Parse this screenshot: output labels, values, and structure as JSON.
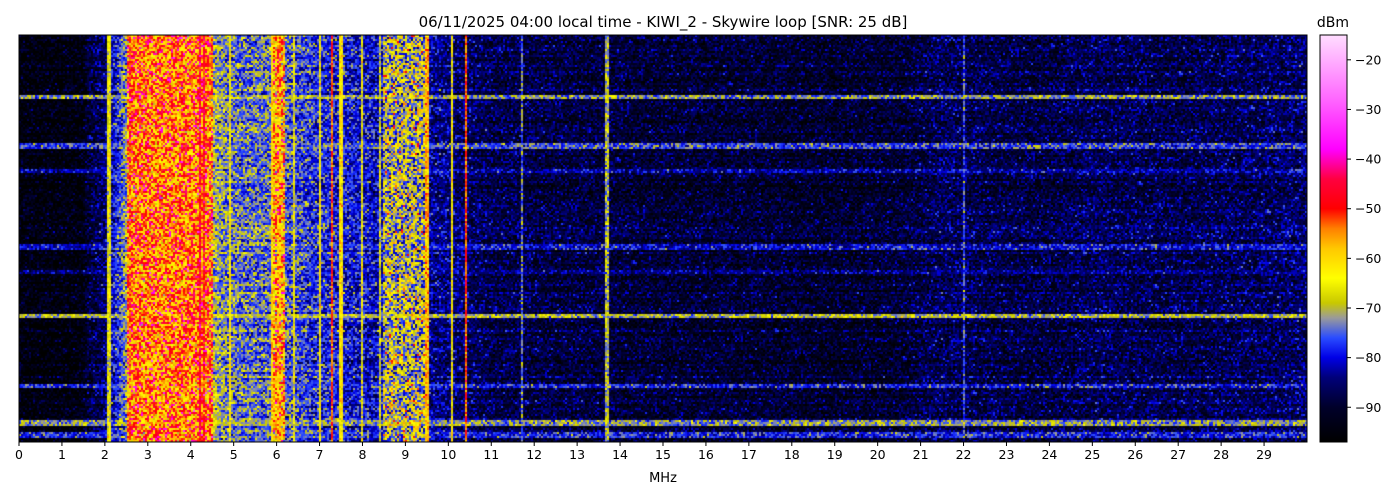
{
  "chart_data": {
    "type": "heatmap",
    "title": "06/11/2025 04:00 local time - KIWI_2 - Skywire loop [SNR: 25 dB]",
    "xlabel": "MHz",
    "ylabel": "",
    "xlim": [
      0,
      30
    ],
    "x_ticks": [
      "0",
      "1",
      "2",
      "3",
      "4",
      "5",
      "6",
      "7",
      "8",
      "9",
      "10",
      "11",
      "12",
      "13",
      "14",
      "15",
      "16",
      "17",
      "18",
      "19",
      "20",
      "21",
      "22",
      "23",
      "24",
      "25",
      "26",
      "27",
      "28",
      "29"
    ],
    "colorbar": {
      "label": "dBm",
      "range": [
        -97,
        -15
      ],
      "ticks": [
        "−20",
        "−30",
        "−40",
        "−50",
        "−60",
        "−70",
        "−80",
        "−90"
      ],
      "tick_values": [
        -20,
        -30,
        -40,
        -50,
        -60,
        -70,
        -80,
        -90
      ],
      "colormap": [
        [
          -97,
          "#000000"
        ],
        [
          -90,
          "#00002a"
        ],
        [
          -84,
          "#00007a"
        ],
        [
          -80,
          "#0000e6"
        ],
        [
          -76,
          "#2a4cff"
        ],
        [
          -72,
          "#9a9a9a"
        ],
        [
          -69,
          "#c8c800"
        ],
        [
          -64,
          "#ffff00"
        ],
        [
          -58,
          "#ffc800"
        ],
        [
          -54,
          "#ff8000"
        ],
        [
          -50,
          "#ff0000"
        ],
        [
          -44,
          "#ff0040"
        ],
        [
          -38,
          "#ff00ff"
        ],
        [
          -28,
          "#ff66ff"
        ],
        [
          -15,
          "#ffddff"
        ]
      ]
    },
    "noise_floor_dbm": [
      [
        0.0,
        -95
      ],
      [
        1.5,
        -95
      ],
      [
        1.6,
        -90
      ],
      [
        2.0,
        -86
      ],
      [
        2.5,
        -72
      ],
      [
        3.0,
        -67
      ],
      [
        3.5,
        -64
      ],
      [
        4.0,
        -66
      ],
      [
        5.0,
        -74
      ],
      [
        6.0,
        -74
      ],
      [
        7.0,
        -78
      ],
      [
        8.0,
        -80
      ],
      [
        9.0,
        -82
      ],
      [
        10.5,
        -86
      ],
      [
        11.0,
        -88
      ],
      [
        13.0,
        -89
      ],
      [
        15.0,
        -90
      ],
      [
        17.0,
        -90
      ],
      [
        19.0,
        -91
      ],
      [
        20.5,
        -90
      ],
      [
        21.5,
        -87
      ],
      [
        22.5,
        -88
      ],
      [
        24.0,
        -89
      ],
      [
        25.0,
        -87
      ],
      [
        27.0,
        -88
      ],
      [
        28.5,
        -87
      ],
      [
        30.0,
        -86
      ]
    ],
    "carriers_mhz_dbm": [
      [
        2.1,
        -66
      ],
      [
        2.6,
        -56
      ],
      [
        2.8,
        -62
      ],
      [
        3.3,
        -64
      ],
      [
        4.2,
        -48
      ],
      [
        4.3,
        -50
      ],
      [
        4.9,
        -64
      ],
      [
        5.9,
        -60
      ],
      [
        6.05,
        -62
      ],
      [
        6.4,
        -66
      ],
      [
        7.0,
        -64
      ],
      [
        7.3,
        -52
      ],
      [
        7.5,
        -62
      ],
      [
        8.0,
        -66
      ],
      [
        8.4,
        -68
      ],
      [
        9.5,
        -58
      ],
      [
        10.1,
        -64
      ],
      [
        10.4,
        -52
      ],
      [
        11.7,
        -74
      ],
      [
        13.7,
        -70
      ],
      [
        22.0,
        -76
      ]
    ],
    "band_segments_mhz": [
      [
        2.5,
        4.5,
        -54
      ],
      [
        5.9,
        6.2,
        -58
      ],
      [
        8.5,
        9.5,
        -70
      ]
    ],
    "interference_rows": [
      [
        0.15,
        -72
      ],
      [
        0.27,
        -76
      ],
      [
        0.33,
        -82
      ],
      [
        0.52,
        -80
      ],
      [
        0.58,
        -84
      ],
      [
        0.69,
        -70
      ],
      [
        0.86,
        -78
      ],
      [
        0.95,
        -72
      ],
      [
        0.98,
        -78
      ]
    ]
  }
}
